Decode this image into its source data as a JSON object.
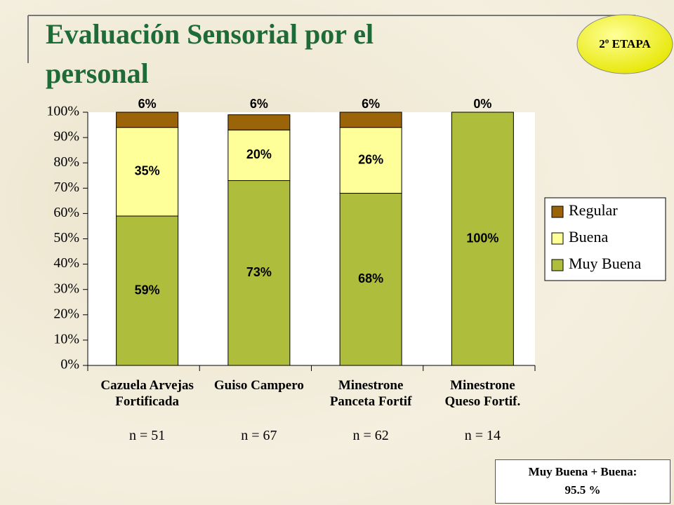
{
  "title": "Evaluación Sensorial  por el personal",
  "badge": "2º ETAPA",
  "sample_sizes": [
    "n = 51",
    "n = 67",
    "n = 62",
    "n = 14"
  ],
  "summary": [
    "Muy Buena + Buena:",
    "95.5 %"
  ],
  "chart_data": {
    "type": "stacked_bar",
    "categories": [
      "Cazuela Arvejas\nFortificada",
      "Guiso Campero",
      "Minestrone\nPanceta Fortif",
      "Minestrone\nQueso Fortif."
    ],
    "series": [
      {
        "name": "Muy Buena",
        "color": "#afbd3c",
        "values": [
          59,
          73,
          68,
          100
        ],
        "value_labels": [
          "59%",
          "73%",
          "68%",
          "100%"
        ]
      },
      {
        "name": "Buena",
        "color": "#ffff99",
        "values": [
          35,
          20,
          26,
          0
        ],
        "value_labels": [
          "35%",
          "20%",
          "26%",
          null
        ]
      },
      {
        "name": "Regular",
        "color": "#9c6408",
        "values": [
          6,
          6,
          6,
          0
        ],
        "value_labels": [
          "6%",
          "6%",
          "6%",
          "0%"
        ]
      }
    ],
    "ylim": [
      0,
      100
    ],
    "yticks": [
      {
        "value": 0,
        "label": "0%"
      },
      {
        "value": 10,
        "label": "10%"
      },
      {
        "value": 20,
        "label": "20%"
      },
      {
        "value": 30,
        "label": "30%"
      },
      {
        "value": 40,
        "label": "40%"
      },
      {
        "value": 50,
        "label": "50%"
      },
      {
        "value": 60,
        "label": "60%"
      },
      {
        "value": 70,
        "label": "70%"
      },
      {
        "value": 80,
        "label": "80%"
      },
      {
        "value": 90,
        "label": "90%"
      },
      {
        "value": 100,
        "label": "100%"
      }
    ],
    "legend": "right"
  }
}
